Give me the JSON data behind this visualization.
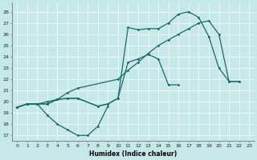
{
  "xlabel": "Humidex (Indice chaleur)",
  "bg_color": "#c6e8e8",
  "grid_color": "#ffffff",
  "line_color": "#1a6b6b",
  "xlim": [
    -0.5,
    23.5
  ],
  "ylim": [
    16.5,
    28.8
  ],
  "xticks": [
    0,
    1,
    2,
    3,
    4,
    5,
    6,
    7,
    8,
    9,
    10,
    11,
    12,
    13,
    14,
    15,
    16,
    17,
    18,
    19,
    20,
    21,
    22,
    23
  ],
  "yticks": [
    17,
    18,
    19,
    20,
    21,
    22,
    23,
    24,
    25,
    26,
    27,
    28
  ],
  "line1_x": [
    0,
    1,
    2,
    3,
    4,
    5,
    6,
    7,
    8,
    9
  ],
  "line1_y": [
    19.5,
    19.8,
    19.8,
    18.8,
    18.0,
    17.5,
    17.0,
    17.0,
    17.8,
    19.6
  ],
  "line2_x": [
    0,
    1,
    2,
    3,
    4,
    5,
    6,
    8,
    9,
    10,
    11,
    12,
    13,
    14,
    15,
    16,
    17,
    18,
    19,
    20,
    21,
    22
  ],
  "line2_y": [
    19.5,
    19.8,
    19.8,
    19.8,
    20.2,
    20.3,
    20.3,
    19.6,
    19.8,
    20.3,
    26.6,
    26.4,
    26.5,
    26.5,
    27.0,
    27.8,
    28.0,
    27.5,
    25.8,
    23.0,
    21.8,
    21.8
  ],
  "line3_x": [
    0,
    1,
    2,
    3,
    4,
    5,
    6,
    8,
    9,
    10,
    11,
    12,
    13,
    14,
    15,
    16
  ],
  "line3_y": [
    19.5,
    19.8,
    19.8,
    19.8,
    20.2,
    20.3,
    20.3,
    19.6,
    19.8,
    20.3,
    23.5,
    23.8,
    24.2,
    23.8,
    21.5,
    21.5
  ],
  "line4_x": [
    0,
    1,
    2,
    3,
    4,
    5,
    6,
    10,
    11,
    12,
    13,
    14,
    15,
    16,
    17,
    18,
    19,
    20,
    21,
    22
  ],
  "line4_y": [
    19.5,
    19.8,
    19.8,
    20.0,
    20.2,
    20.8,
    21.2,
    22.0,
    22.8,
    23.5,
    24.3,
    25.0,
    25.5,
    26.0,
    26.5,
    27.0,
    27.2,
    26.0,
    21.8,
    21.8
  ]
}
